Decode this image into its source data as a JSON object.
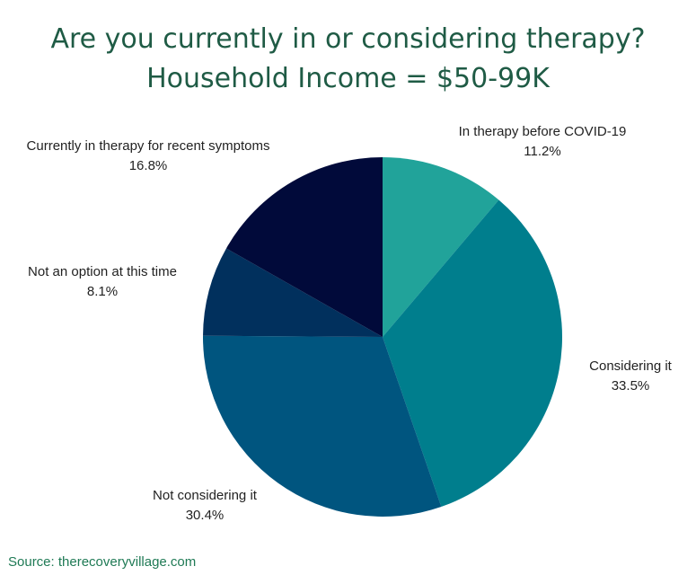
{
  "chart_data": {
    "type": "pie",
    "title": "Are you currently in or considering therapy?",
    "subtitle": "Household Income = $50-99K",
    "slices": [
      {
        "label": "In therapy before COVID-19",
        "value": 11.2,
        "value_label": "11.2%",
        "color": "#21a39a"
      },
      {
        "label": "Considering it",
        "value": 33.5,
        "value_label": "33.5%",
        "color": "#007e8d"
      },
      {
        "label": "Not considering it",
        "value": 30.4,
        "value_label": "30.4%",
        "color": "#00557f"
      },
      {
        "label": "Not an option at this time",
        "value": 8.1,
        "value_label": "8.1%",
        "color": "#01305d"
      },
      {
        "label": "Currently in therapy for recent symptoms",
        "value": 16.8,
        "value_label": "16.8%",
        "color": "#010a3a"
      }
    ],
    "start_angle": "12 o'clock",
    "direction": "clockwise"
  },
  "source": "Source: therecoveryvillage.com"
}
